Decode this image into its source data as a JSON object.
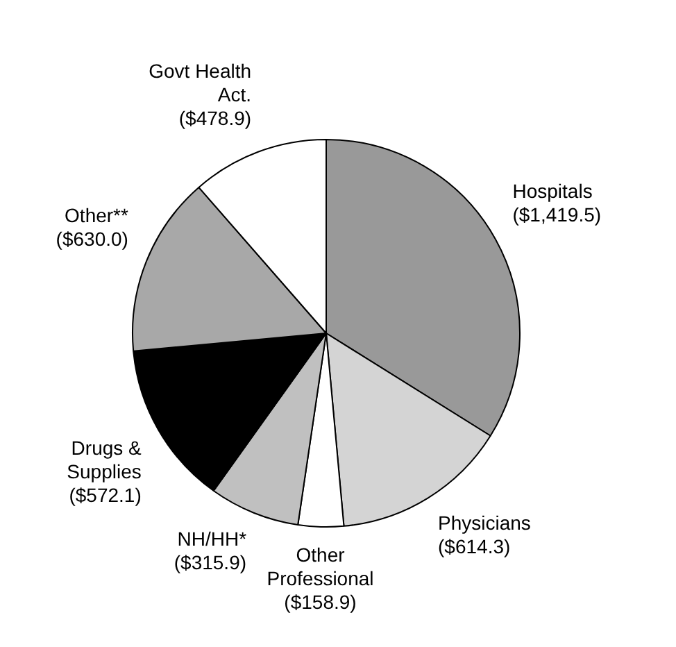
{
  "chart_data": {
    "type": "pie",
    "categories": [
      "Hospitals",
      "Physicians",
      "Other Professional",
      "NH/HH*",
      "Drugs & Supplies",
      "Other**",
      "Govt Health Act."
    ],
    "values": [
      1419.5,
      614.3,
      158.9,
      315.9,
      572.1,
      630.0,
      478.9
    ],
    "colors": [
      "#999999",
      "#d4d4d4",
      "#ffffff",
      "#c0c0c0",
      "#000000",
      "#a8a8a8",
      "#ffffff"
    ],
    "value_labels": [
      "($1,419.5)",
      "($614.3)",
      "($158.9)",
      "($315.9)",
      "($572.1)",
      "($630.0)",
      "($478.9)"
    ],
    "legend": false
  }
}
